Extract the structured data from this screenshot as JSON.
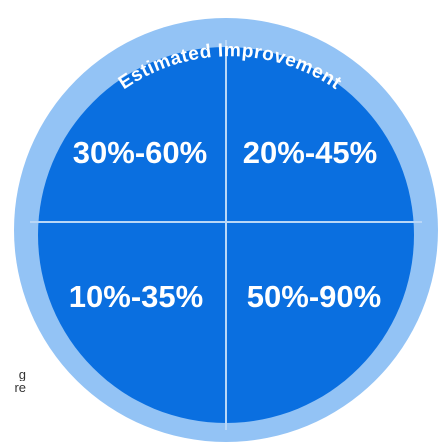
{
  "ring": {
    "title": "Estimated Improvement"
  },
  "quadrants": {
    "top_left": "30%-60%",
    "top_right": "20%-45%",
    "bottom_left": "10%-35%",
    "bottom_right": "50%-90%"
  },
  "side_text": {
    "line1": "g",
    "line2": "re"
  },
  "colors": {
    "outer_ring": "#93c3f5",
    "inner_disc": "#0a6fe0",
    "divider": "#b9d7f7",
    "text": "#ffffff"
  }
}
